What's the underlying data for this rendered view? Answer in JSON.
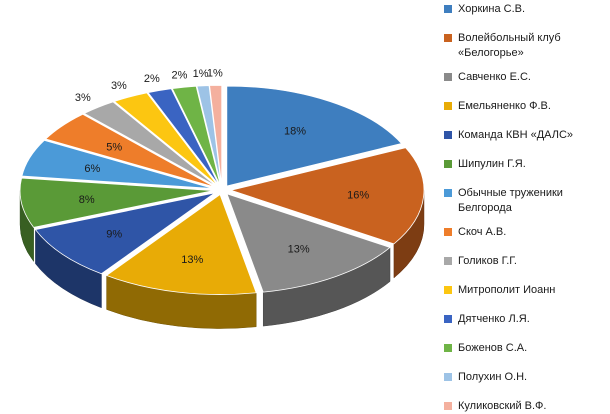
{
  "chart_data": {
    "type": "pie",
    "title": "",
    "slices": [
      {
        "label": "Хоркина С.В.",
        "value": 18,
        "value_label": "18%",
        "color": "#3e7ebf"
      },
      {
        "label": "Волейбольный клуб «Белогорье»",
        "value": 16,
        "value_label": "16%",
        "color": "#c9621f"
      },
      {
        "label": "Савченко Е.С.",
        "value": 13,
        "value_label": "13%",
        "color": "#8a8a8a"
      },
      {
        "label": "Емельяненко  Ф.В.",
        "value": 13,
        "value_label": "13%",
        "color": "#e8ab06"
      },
      {
        "label": "Команда КВН «ДАЛС»",
        "value": 9,
        "value_label": "9%",
        "color": "#2f55a7"
      },
      {
        "label": "Шипулин Г.Я.",
        "value": 8,
        "value_label": "8%",
        "color": "#5a9a37"
      },
      {
        "label": "Обычные труженики Белгорода",
        "value": 6,
        "value_label": "6%",
        "color": "#4b9ad8"
      },
      {
        "label": "Скоч А.В.",
        "value": 5,
        "value_label": "5%",
        "color": "#ee7d2a"
      },
      {
        "label": "Голиков Г.Г.",
        "value": 3,
        "value_label": "3%",
        "color": "#a8a8a8"
      },
      {
        "label": "Митрополит Иоанн",
        "value": 3,
        "value_label": "3%",
        "color": "#fcc611"
      },
      {
        "label": "Дятченко  Л.Я.",
        "value": 2,
        "value_label": "2%",
        "color": "#3a64c2"
      },
      {
        "label": "Боженов  С.А.",
        "value": 2,
        "value_label": "2%",
        "color": "#6fb446"
      },
      {
        "label": "Полухин О.Н.",
        "value": 1,
        "value_label": "1%",
        "color": "#9dc3e6"
      },
      {
        "label": "Куликовский В.Ф.",
        "value": 1,
        "value_label": "1%",
        "color": "#f4b09e"
      }
    ],
    "legend_position": "right",
    "style": "3d-exploded"
  }
}
